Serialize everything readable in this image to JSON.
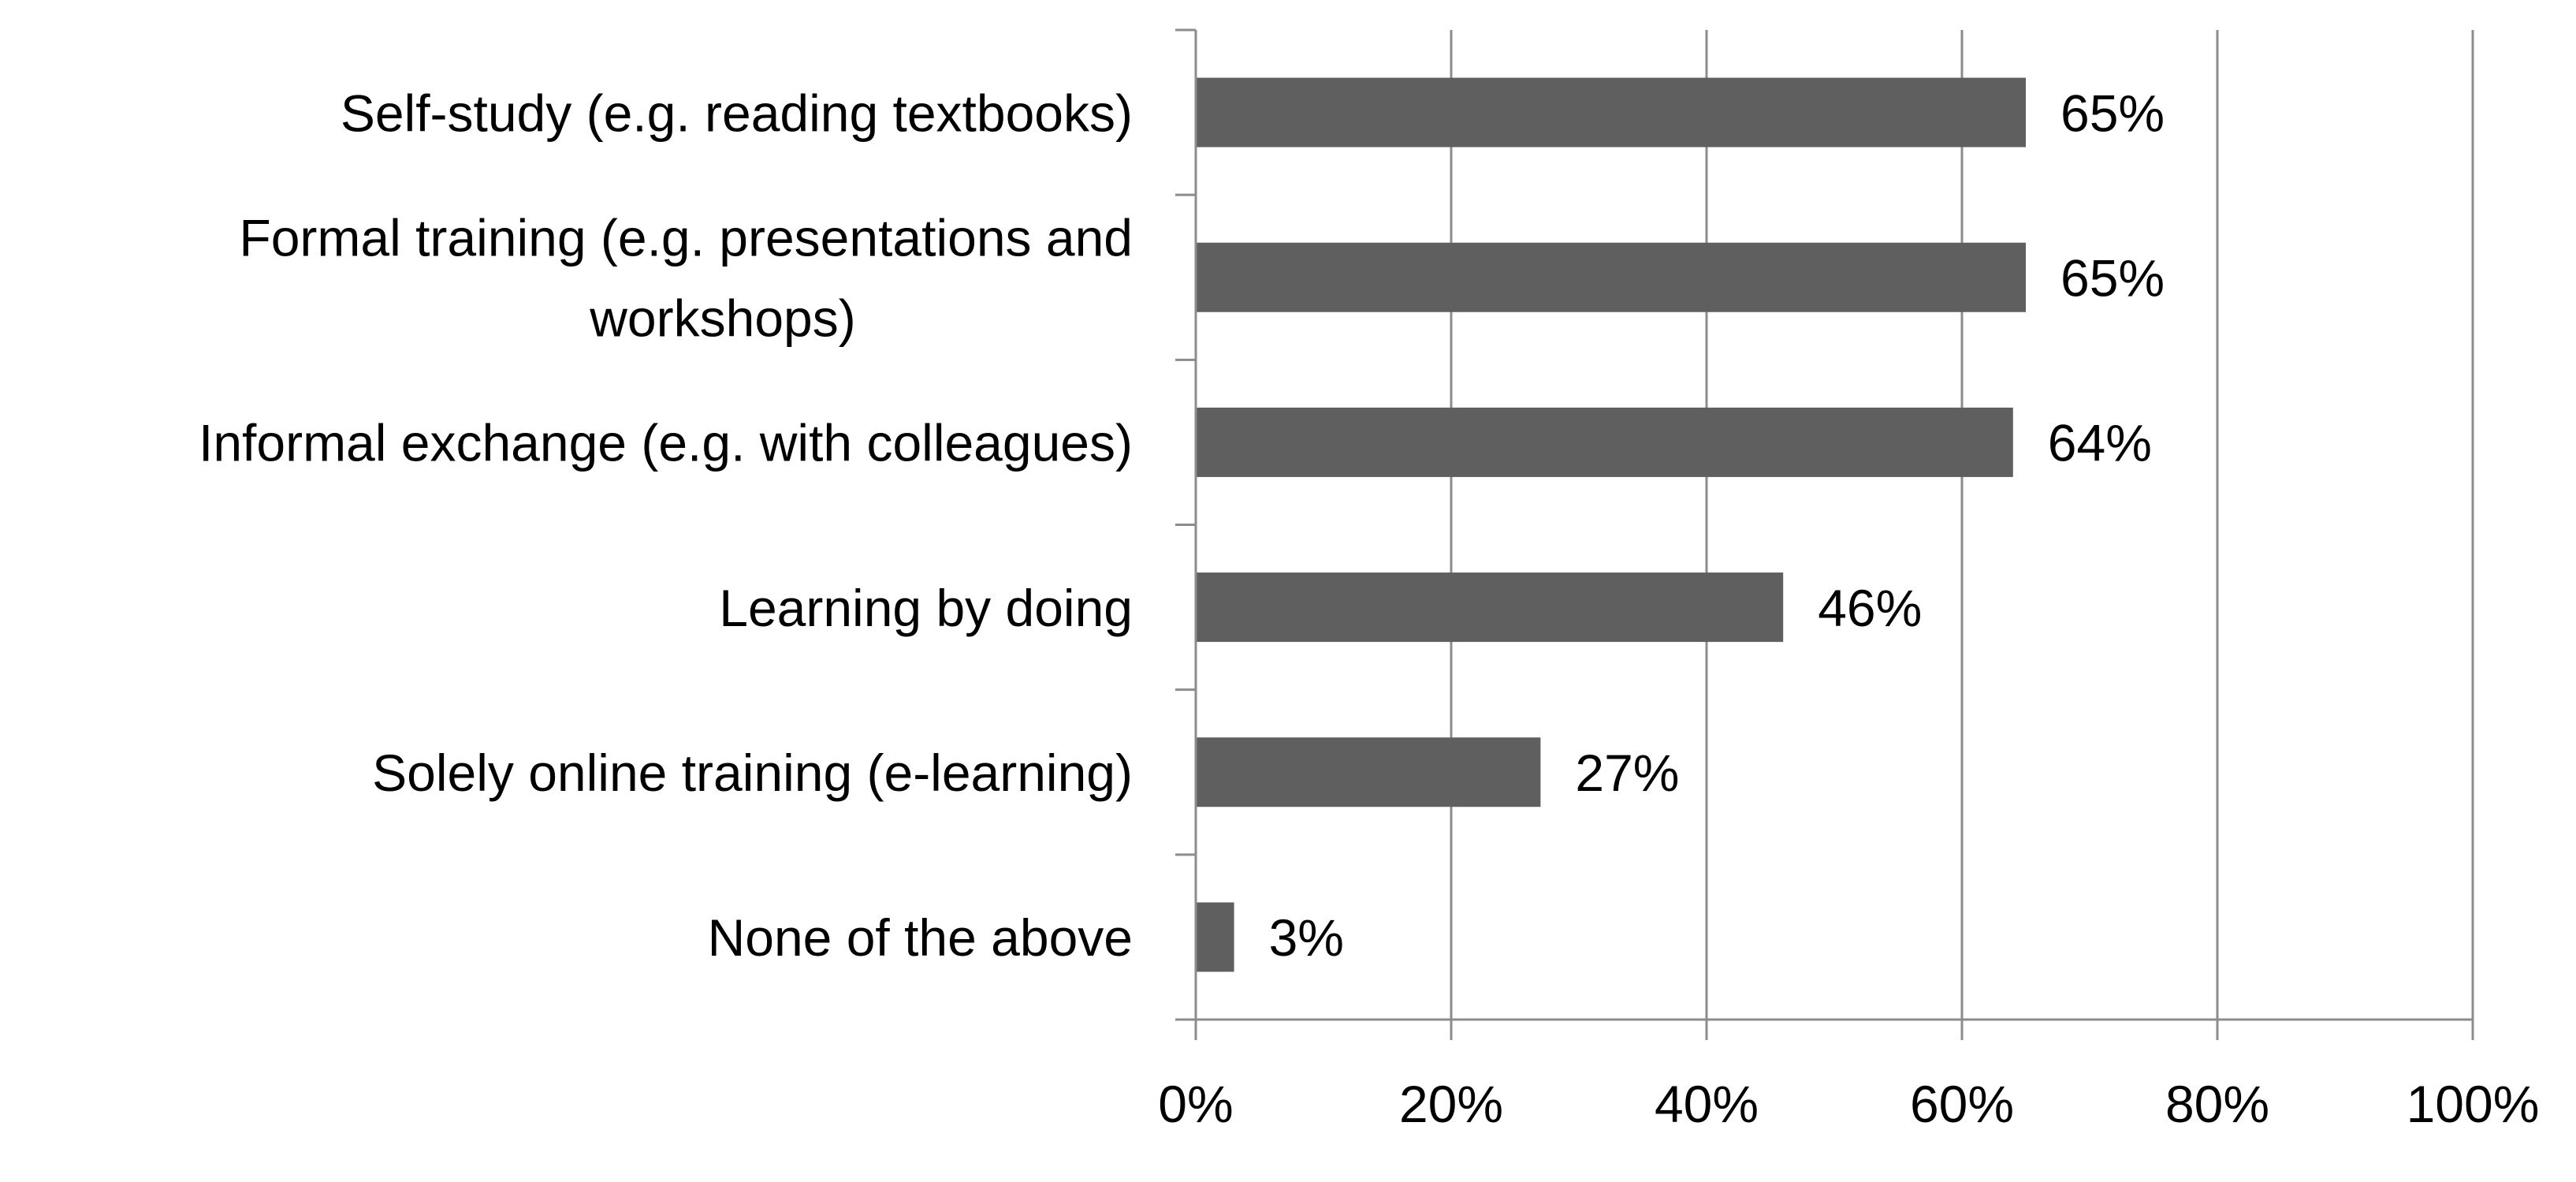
{
  "chart_data": {
    "type": "bar",
    "orientation": "horizontal",
    "categories": [
      [
        "Self-study (e.g. reading textbooks)"
      ],
      [
        "Formal training (e.g. presentations and",
        "workshops)"
      ],
      [
        "Informal exchange (e.g. with colleagues)"
      ],
      [
        "Learning by doing"
      ],
      [
        "Solely online training (e-learning)"
      ],
      [
        "None of the above"
      ]
    ],
    "values": [
      65,
      65,
      64,
      46,
      27,
      3
    ],
    "data_labels": [
      "65%",
      "65%",
      "64%",
      "46%",
      "27%",
      "3%"
    ],
    "x_ticks": [
      0,
      20,
      40,
      60,
      80,
      100
    ],
    "x_tick_labels": [
      "0%",
      "20%",
      "40%",
      "60%",
      "80%",
      "100%"
    ],
    "xlim": [
      0,
      100
    ],
    "title": "",
    "xlabel": "",
    "ylabel": "",
    "grid": "vertical",
    "legend": "none",
    "colors": {
      "bar": "#5f5f5f",
      "grid": "#8c8c8c",
      "axis": "#8c8c8c",
      "text": "#000000"
    }
  }
}
